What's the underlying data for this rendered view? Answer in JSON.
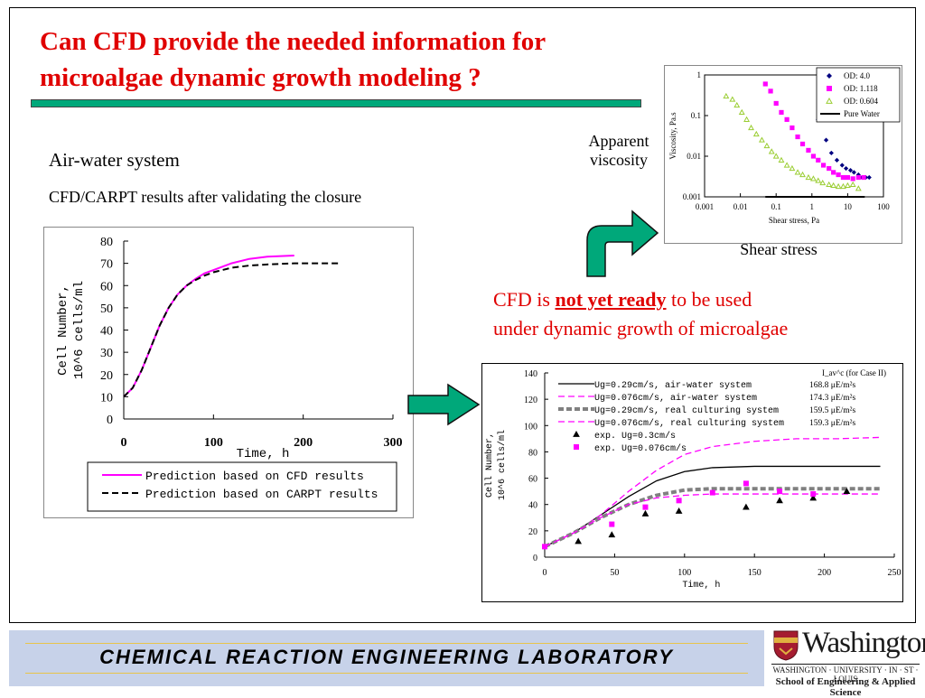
{
  "slide": {
    "title": "Can CFD provide the needed information for microalgae dynamic growth modeling ?",
    "subtitle_1": "Air-water system",
    "subtitle_2": "CFD/CARPT results after validating the closure",
    "viscosity_label_line1": "Apparent",
    "viscosity_label_line2": "viscosity",
    "shear_label": "Shear stress",
    "cfd_note_prefix": "CFD is ",
    "cfd_note_emphasis": "not yet ready",
    "cfd_note_suffix": " to be used",
    "cfd_note_line2": "under dynamic growth of microalgae"
  },
  "footer": {
    "lab_name": "CHEMICAL  REACTION  ENGINEERING  LABORATORY",
    "logo_name": "Washington",
    "logo_univ": "WASHINGTON · UNIVERSITY · IN · ST · LOUIS",
    "logo_school": "School of Engineering & Applied Science"
  },
  "colors": {
    "title": "#e00000",
    "accent_green": "#00a87a",
    "footer_bg": "#c7d2e9",
    "magenta": "#ff00ff",
    "navy": "#000080"
  },
  "icons": [
    "curved-up-right-arrow-icon",
    "right-arrow-icon",
    "university-shield-icon"
  ],
  "chart_data": [
    {
      "type": "line",
      "name": "cfd-vs-carpt",
      "xlabel": "Time, h",
      "ylabel": "Cell Number, 10^6 cells/ml",
      "xlim": [
        0,
        300
      ],
      "ylim": [
        0,
        80
      ],
      "xticks": [
        0,
        100,
        200,
        300
      ],
      "yticks": [
        0,
        10,
        20,
        30,
        40,
        50,
        60,
        70,
        80
      ],
      "legend_position": "bottom",
      "series": [
        {
          "name": "Prediction based on CFD results",
          "style": "solid",
          "color": "#ff00ff",
          "x": [
            0,
            10,
            20,
            30,
            40,
            50,
            60,
            70,
            80,
            90,
            100,
            120,
            140,
            160,
            190
          ],
          "y": [
            10,
            14,
            22,
            32,
            42,
            50,
            56,
            60,
            63,
            65.5,
            67,
            70,
            72,
            73,
            73.5
          ]
        },
        {
          "name": "Prediction based on CARPT results",
          "style": "dashed",
          "color": "#000000",
          "x": [
            0,
            10,
            20,
            30,
            40,
            50,
            60,
            70,
            80,
            90,
            100,
            120,
            140,
            160,
            190,
            240
          ],
          "y": [
            10,
            14,
            22,
            32,
            42,
            50,
            56,
            60,
            62.5,
            64.5,
            66,
            68,
            69,
            69.5,
            70,
            70
          ]
        }
      ]
    },
    {
      "type": "scatter",
      "name": "viscosity-vs-shear",
      "xlabel": "Shear stress, Pa",
      "ylabel": "Viscosity, Pa.s",
      "xscale": "log",
      "yscale": "log",
      "xlim": [
        0.001,
        100
      ],
      "ylim": [
        0.001,
        1
      ],
      "xticks": [
        "0.001",
        "0.01",
        "0.1",
        "1",
        "10",
        "100"
      ],
      "yticks": [
        "0.001",
        "0.01",
        "0.1",
        "1"
      ],
      "legend_position": "top-right",
      "series": [
        {
          "name": "OD: 4.0",
          "marker": "diamond",
          "color": "#000080",
          "x": [
            1.5,
            2.5,
            3.5,
            5,
            7,
            9,
            12,
            15,
            20,
            25,
            32,
            40
          ],
          "y": [
            0.08,
            0.025,
            0.012,
            0.008,
            0.006,
            0.005,
            0.0045,
            0.004,
            0.0035,
            0.003,
            0.003,
            0.003
          ]
        },
        {
          "name": "OD: 1.118",
          "marker": "square",
          "color": "#ff00ff",
          "x": [
            0.05,
            0.07,
            0.1,
            0.14,
            0.2,
            0.28,
            0.4,
            0.55,
            0.8,
            1.1,
            1.5,
            2.1,
            3,
            4,
            5.5,
            7.5,
            10,
            14,
            20,
            28
          ],
          "y": [
            0.6,
            0.4,
            0.2,
            0.12,
            0.08,
            0.05,
            0.03,
            0.02,
            0.014,
            0.01,
            0.008,
            0.006,
            0.005,
            0.004,
            0.0035,
            0.003,
            0.003,
            0.0028,
            0.003,
            0.003
          ]
        },
        {
          "name": "OD: 0.604",
          "marker": "triangle",
          "color": "#9acd32",
          "x": [
            0.004,
            0.006,
            0.008,
            0.011,
            0.015,
            0.02,
            0.028,
            0.04,
            0.055,
            0.075,
            0.1,
            0.14,
            0.2,
            0.28,
            0.4,
            0.55,
            0.8,
            1.1,
            1.5,
            2,
            3,
            4,
            5.5,
            7.5,
            10,
            14,
            20
          ],
          "y": [
            0.3,
            0.25,
            0.18,
            0.12,
            0.08,
            0.05,
            0.035,
            0.025,
            0.018,
            0.013,
            0.01,
            0.008,
            0.006,
            0.005,
            0.004,
            0.0035,
            0.003,
            0.0028,
            0.0025,
            0.0022,
            0.002,
            0.0019,
            0.0018,
            0.0018,
            0.0019,
            0.002,
            0.0016
          ]
        },
        {
          "name": "Pure Water",
          "style": "solid",
          "color": "#000000",
          "x": [
            0.05,
            30
          ],
          "y": [
            0.001,
            0.001
          ]
        }
      ]
    },
    {
      "type": "line",
      "name": "culturing-comparison",
      "xlabel": "Time, h",
      "ylabel": "Cell Number, 10^6 cells/ml",
      "xlim": [
        0,
        250
      ],
      "ylim": [
        0,
        140
      ],
      "xticks": [
        0,
        50,
        100,
        150,
        200,
        250
      ],
      "yticks": [
        0,
        20,
        40,
        60,
        80,
        100,
        120,
        140
      ],
      "legend_position": "top-left",
      "intensity_header": "I_av^c (for Case II)",
      "series": [
        {
          "name": "Ug=0.29cm/s, air-water system",
          "intensity": "168.8 μE/m²s",
          "style": "solid",
          "color": "#000000",
          "x": [
            0,
            20,
            40,
            60,
            80,
            100,
            120,
            150,
            180,
            210,
            240
          ],
          "y": [
            8,
            18,
            32,
            46,
            58,
            65,
            68,
            69,
            69,
            69,
            69
          ]
        },
        {
          "name": "Ug=0.076cm/s, air-water system",
          "intensity": "174.3 μE/m²s",
          "style": "dashed",
          "color": "#ff00ff",
          "x": [
            0,
            20,
            40,
            60,
            80,
            100,
            120,
            150,
            180,
            210,
            240
          ],
          "y": [
            8,
            18,
            32,
            50,
            66,
            78,
            84,
            88,
            90,
            90,
            91
          ]
        },
        {
          "name": "Ug=0.29cm/s, real culturing system",
          "intensity": "159.5 μE/m²s",
          "style": "thick-dashed",
          "color": "#808080",
          "x": [
            0,
            20,
            40,
            60,
            80,
            100,
            120,
            150,
            180,
            210,
            240
          ],
          "y": [
            8,
            18,
            30,
            40,
            47,
            51,
            52,
            52,
            52,
            52,
            52
          ]
        },
        {
          "name": "Ug=0.076cm/s, real culturing system",
          "intensity": "159.3 μE/m²s",
          "style": "dashed",
          "color": "#ff00ff",
          "x": [
            0,
            20,
            40,
            60,
            80,
            100,
            120,
            150,
            180,
            210,
            240
          ],
          "y": [
            8,
            18,
            30,
            40,
            45,
            47,
            48,
            48,
            48,
            48,
            48
          ]
        },
        {
          "name": "exp. Ug=0.3cm/s",
          "marker": "triangle",
          "color": "#000000",
          "x": [
            24,
            48,
            72,
            96,
            144,
            168,
            192,
            216
          ],
          "y": [
            12,
            17,
            33,
            35,
            38,
            43,
            45,
            50
          ]
        },
        {
          "name": "exp. Ug=0.076cm/s",
          "marker": "square",
          "color": "#ff00ff",
          "x": [
            0,
            48,
            72,
            96,
            120,
            144,
            168,
            192
          ],
          "y": [
            8,
            25,
            38,
            43,
            49,
            56,
            50,
            48
          ]
        }
      ]
    }
  ]
}
